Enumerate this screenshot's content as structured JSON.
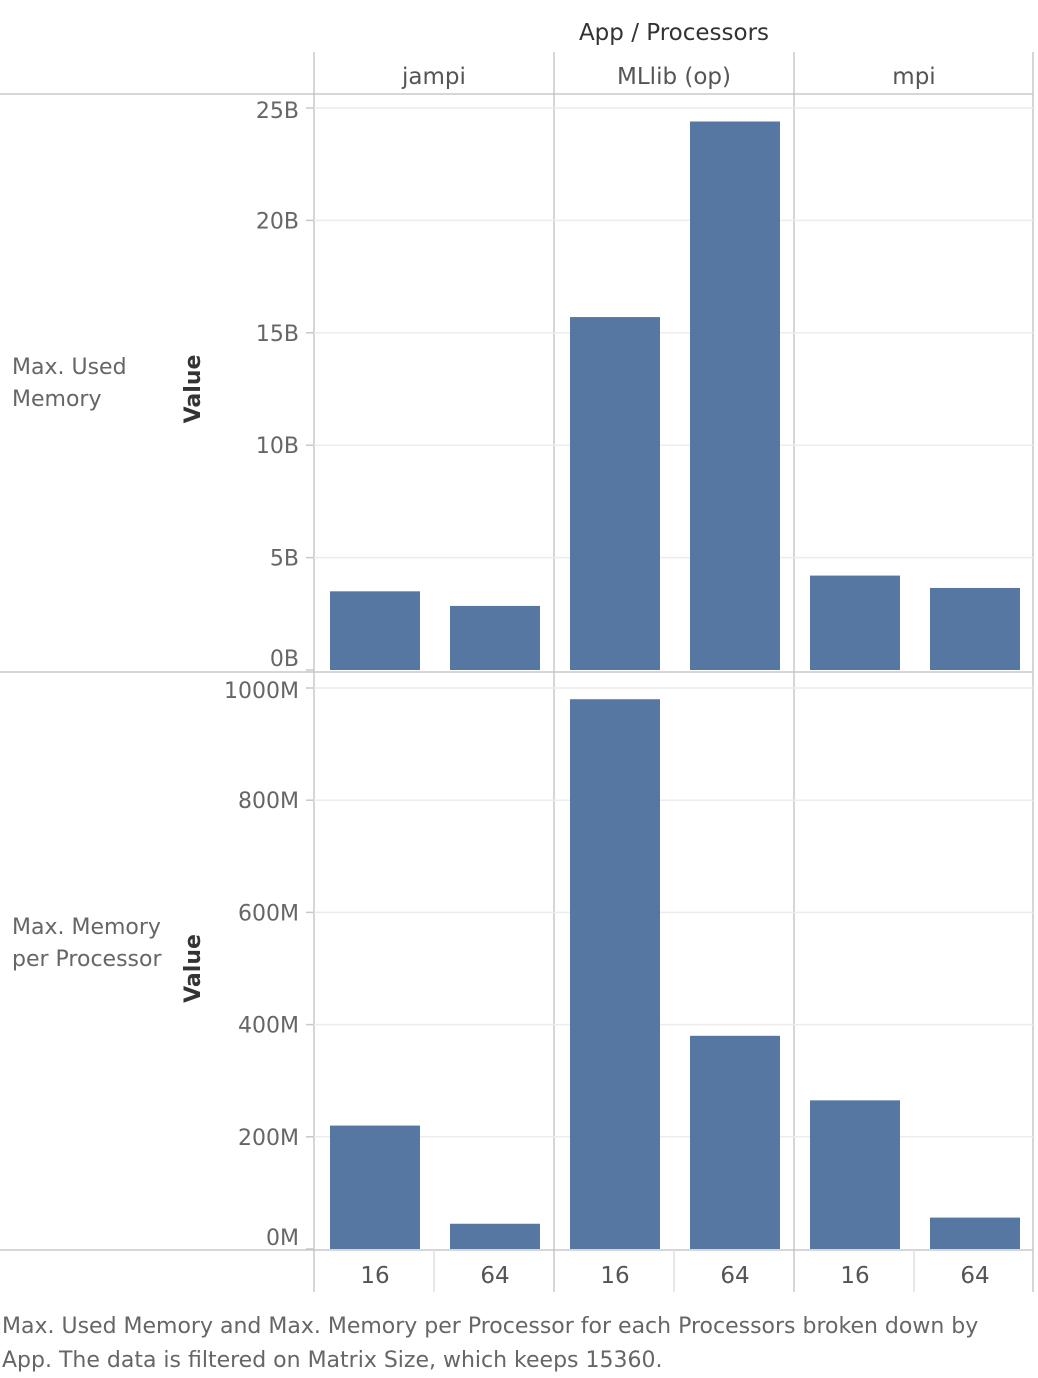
{
  "header": {
    "title": "App / Processors"
  },
  "caption": "Max. Used Memory and Max. Memory per Processor for each Processors broken down by App. The data is filtered on Matrix Size, which keeps 15360.",
  "colors": {
    "bar": "#5577a2",
    "grid": "#ececec",
    "rule": "#c8c8c8"
  },
  "chart_data": {
    "type": "bar",
    "column_field": "App / Processors",
    "apps": [
      "jampi",
      "MLlib (op)",
      "mpi"
    ],
    "processors": [
      "16",
      "64"
    ],
    "panels": [
      {
        "row_label": "Max. Used Memory",
        "ylabel": "Value",
        "ylim": [
          0,
          25000000000
        ],
        "ticks": [
          {
            "value": 0,
            "label": "0B"
          },
          {
            "value": 5000000000,
            "label": "5B"
          },
          {
            "value": 10000000000,
            "label": "10B"
          },
          {
            "value": 15000000000,
            "label": "15B"
          },
          {
            "value": 20000000000,
            "label": "20B"
          },
          {
            "value": 25000000000,
            "label": "25B"
          }
        ],
        "values": [
          [
            3500000000,
            2850000000
          ],
          [
            15700000000,
            24400000000
          ],
          [
            4200000000,
            3650000000
          ]
        ]
      },
      {
        "row_label": "Max. Memory per Processor",
        "ylabel": "Value",
        "ylim": [
          0,
          1000000000
        ],
        "ticks": [
          {
            "value": 0,
            "label": "0M"
          },
          {
            "value": 200000000,
            "label": "200M"
          },
          {
            "value": 400000000,
            "label": "400M"
          },
          {
            "value": 600000000,
            "label": "600M"
          },
          {
            "value": 800000000,
            "label": "800M"
          },
          {
            "value": 1000000000,
            "label": "1000M"
          }
        ],
        "values": [
          [
            220000000,
            45000000
          ],
          [
            980000000,
            380000000
          ],
          [
            265000000,
            56000000
          ]
        ]
      }
    ]
  }
}
